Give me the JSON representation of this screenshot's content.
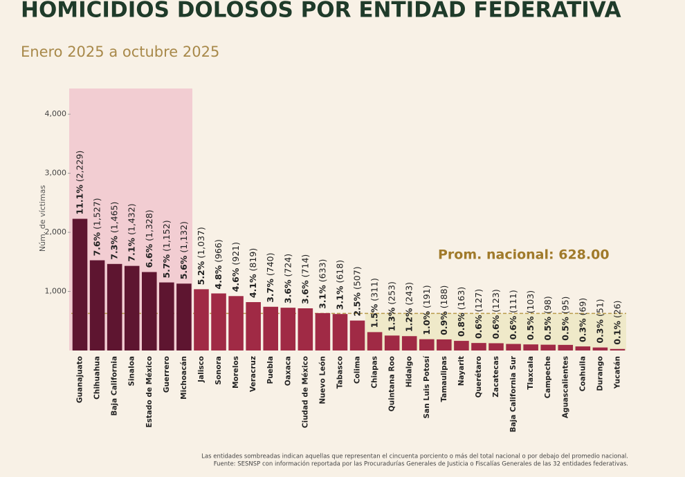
{
  "chart_data": {
    "type": "bar",
    "title": "HOMICIDIOS DOLOSOS POR ENTIDAD FEDERATIVA",
    "subtitle": "Enero 2025 a octubre 2025",
    "y_label": "Núm. de víctimas",
    "categories": [
      "Guanajuato",
      "Chihuahua",
      "Baja California",
      "Sinaloa",
      "Estado de México",
      "Guerrero",
      "Michoacán",
      "Jalisco",
      "Sonora",
      "Morelos",
      "Veracruz",
      "Puebla",
      "Oaxaca",
      "Ciudad de México",
      "Nuevo León",
      "Tabasco",
      "Colima",
      "Chiapas",
      "Quintana Roo",
      "Hidalgo",
      "San Luis Potosí",
      "Tamaulipas",
      "Nayarit",
      "Querétaro",
      "Zacatecas",
      "Baja California Sur",
      "Tlaxcala",
      "Campeche",
      "Aguascalientes",
      "Coahuila",
      "Durango",
      "Yucatán"
    ],
    "values": [
      2229,
      1527,
      1465,
      1432,
      1328,
      1152,
      1132,
      1037,
      966,
      921,
      819,
      740,
      724,
      714,
      633,
      618,
      507,
      311,
      253,
      243,
      191,
      188,
      163,
      127,
      123,
      111,
      103,
      98,
      95,
      69,
      51,
      26
    ],
    "share_labels": [
      "11.1%",
      "7.6%",
      "7.3%",
      "7.1%",
      "6.6%",
      "5.7%",
      "5.6%",
      "5.2%",
      "4.8%",
      "4.6%",
      "4.1%",
      "3.7%",
      "3.6%",
      "3.6%",
      "3.1%",
      "3.1%",
      "2.5%",
      "1.5%",
      "1.3%",
      "1.2%",
      "1.0%",
      "0.9%",
      "0.8%",
      "0.6%",
      "0.6%",
      "0.6%",
      "0.5%",
      "0.5%",
      "0.5%",
      "0.3%",
      "0.3%",
      "0.1%"
    ],
    "value_labels": [
      "(2,229)",
      "(1,527)",
      "(1,465)",
      "(1,432)",
      "(1,328)",
      "(1,152)",
      "(1,132)",
      "(1,037)",
      "(966)",
      "(921)",
      "(819)",
      "(740)",
      "(724)",
      "(714)",
      "(633)",
      "(618)",
      "(507)",
      "(311)",
      "(253)",
      "(243)",
      "(191)",
      "(188)",
      "(163)",
      "(127)",
      "(123)",
      "(111)",
      "(103)",
      "(98)",
      "(95)",
      "(69)",
      "(51)",
      "(26)"
    ],
    "colors": [
      "#5e1530",
      "#5e1530",
      "#5e1530",
      "#5e1530",
      "#5e1530",
      "#5e1530",
      "#5e1530",
      "#a02a45",
      "#a02a45",
      "#a02a45",
      "#a02a45",
      "#a02a45",
      "#a02a45",
      "#a02a45",
      "#a02a45",
      "#a02a45",
      "#a02a45",
      "#a02a45",
      "#a02a45",
      "#a02a45",
      "#a02a45",
      "#a02a45",
      "#a02a45",
      "#a02a45",
      "#a02a45",
      "#a02a45",
      "#a02a45",
      "#a02a45",
      "#a02a45",
      "#a02a45",
      "#a02a45",
      "#a02a45"
    ],
    "ylim": [
      0,
      4400
    ],
    "yticks": [
      {
        "value": 1000,
        "label": "1,000"
      },
      {
        "value": 2000,
        "label": "2,000"
      },
      {
        "value": 3000,
        "label": "3,000"
      },
      {
        "value": 4000,
        "label": "4,000"
      }
    ],
    "average": 628,
    "average_label": "Prom. nacional: 628.00",
    "notes": [
      "Las entidades sombreadas indican aquellas que representan el cincuenta porciento o más del total nacional o por debajo del promedio nacional.",
      "Fuente: SESNSP con información reportada por las Procuradurías Generales de Justicia o Fiscalías Generales de las 32 entidades federativas."
    ]
  }
}
